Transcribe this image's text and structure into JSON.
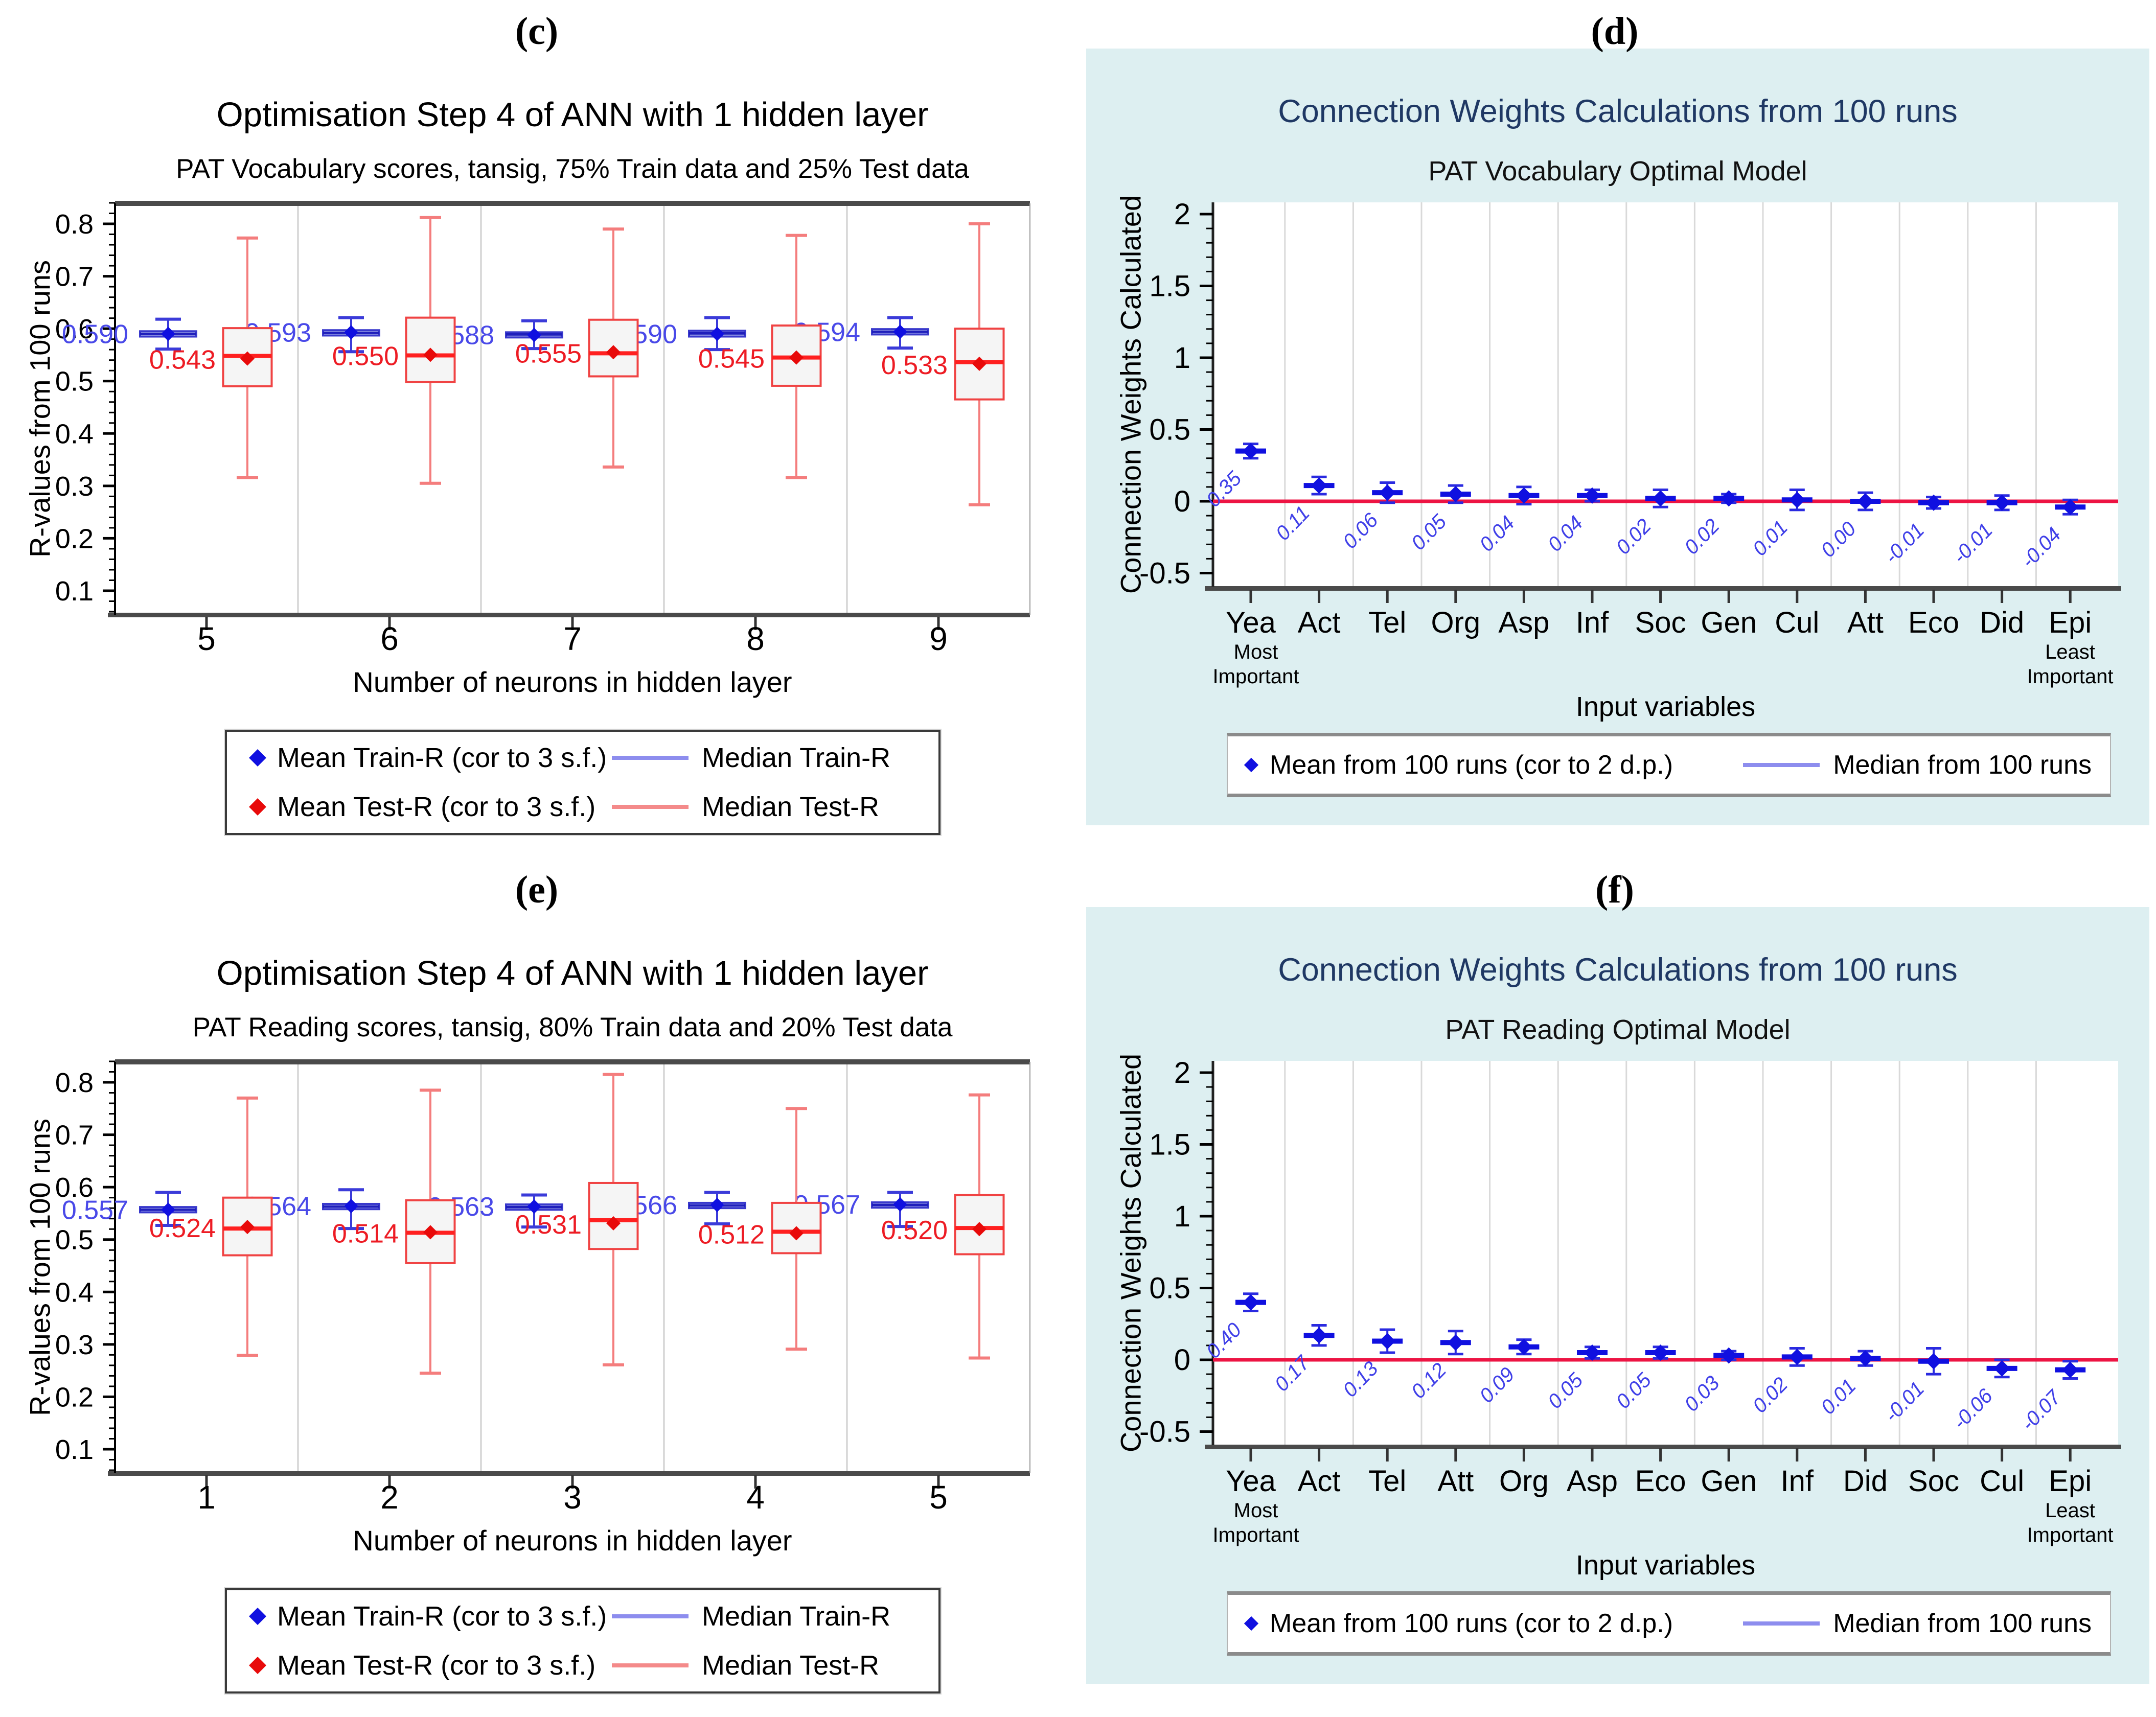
{
  "colors": {
    "page_bg": "#ffffff",
    "card_bg": "#DDEFF1",
    "navy_title": "#1F3864",
    "axis_dark": "#4a4a4a",
    "grid_gray": "#d9d9d9",
    "separator_gray": "#cfcfcf",
    "train_blue": "#1010E0",
    "train_box_fill": "#C9D2F6",
    "train_box_edge": "#3939CC",
    "train_median": "#1F1FBB",
    "train_whisker": "#3B3BD9",
    "train_label_text": "#4949E8",
    "test_red": "#E80A0A",
    "test_box_fill": "#F5F5F5",
    "test_box_edge": "#F04343",
    "test_median": "#FF2020",
    "test_whisker": "#F47D7D",
    "test_label_text": "#ED1C24",
    "zero_line_crimson": "#ED1443",
    "legend_median_blue": "#8D8DEE",
    "legend_median_salmon": "#F48A8A",
    "value_label_blue": "#4040E8"
  },
  "panels_shared": {
    "box_legend": [
      {
        "label": "Mean Train-R (cor to 3 s.f.)",
        "marker": "diamond",
        "color": "#1010E0"
      },
      {
        "label": "Median Train-R",
        "marker": "line",
        "color": "#8D8DEE"
      },
      {
        "label": "Mean Test-R (cor to 3 s.f.)",
        "marker": "diamond",
        "color": "#E80A0A"
      },
      {
        "label": "Median Test-R",
        "marker": "line",
        "color": "#F48A8A"
      }
    ],
    "cw_legend": [
      {
        "label": "Mean from 100 runs (cor to 2 d.p.)",
        "marker": "diamond",
        "color": "#1010E0"
      },
      {
        "label": "Median from 100 runs",
        "marker": "line",
        "color": "#8D8DEE"
      }
    ]
  },
  "chart_data": [
    {
      "id": "c",
      "type": "boxplot",
      "tag": "(c)",
      "title": "Optimisation Step 4 of ANN with 1 hidden layer",
      "subtitle": "PAT Vocabulary scores, tansig, 75% Train data and 25% Test data",
      "xlabel": "Number of neurons in hidden layer",
      "ylabel": "R-values from 100 runs",
      "ylim": [
        0.05,
        0.84
      ],
      "yticks": [
        0.1,
        0.2,
        0.3,
        0.4,
        0.5,
        0.6,
        0.7,
        0.8
      ],
      "categories": [
        "5",
        "6",
        "7",
        "8",
        "9"
      ],
      "grid": "section-separators",
      "legend_position": "bottom",
      "train": [
        {
          "mean": 0.59,
          "label": "0.590",
          "median": 0.59,
          "q1": 0.585,
          "q3": 0.595,
          "lo": 0.561,
          "hi": 0.618
        },
        {
          "mean": 0.593,
          "label": "0.593",
          "median": 0.592,
          "q1": 0.587,
          "q3": 0.597,
          "lo": 0.556,
          "hi": 0.621
        },
        {
          "mean": 0.588,
          "label": "0.588",
          "median": 0.589,
          "q1": 0.584,
          "q3": 0.593,
          "lo": 0.562,
          "hi": 0.615
        },
        {
          "mean": 0.59,
          "label": "0.590",
          "median": 0.591,
          "q1": 0.585,
          "q3": 0.596,
          "lo": 0.56,
          "hi": 0.621
        },
        {
          "mean": 0.594,
          "label": "0.594",
          "median": 0.594,
          "q1": 0.589,
          "q3": 0.599,
          "lo": 0.563,
          "hi": 0.621
        }
      ],
      "test": [
        {
          "mean": 0.543,
          "label": "0.543",
          "median": 0.548,
          "q1": 0.49,
          "q3": 0.601,
          "lo": 0.316,
          "hi": 0.773
        },
        {
          "mean": 0.55,
          "label": "0.550",
          "median": 0.549,
          "q1": 0.498,
          "q3": 0.621,
          "lo": 0.305,
          "hi": 0.812
        },
        {
          "mean": 0.555,
          "label": "0.555",
          "median": 0.553,
          "q1": 0.509,
          "q3": 0.617,
          "lo": 0.336,
          "hi": 0.79
        },
        {
          "mean": 0.545,
          "label": "0.545",
          "median": 0.545,
          "q1": 0.491,
          "q3": 0.606,
          "lo": 0.316,
          "hi": 0.778
        },
        {
          "mean": 0.533,
          "label": "0.533",
          "median": 0.536,
          "q1": 0.465,
          "q3": 0.6,
          "lo": 0.264,
          "hi": 0.8
        }
      ]
    },
    {
      "id": "d",
      "type": "scatter",
      "tag": "(d)",
      "title": "Connection Weights Calculations from 100 runs",
      "subtitle": "PAT Vocabulary Optimal Model",
      "xlabel": "Input variables",
      "ylabel": "Connection Weights Calculated",
      "ylim": [
        -0.6,
        2.1
      ],
      "yticks": [
        -0.5,
        0,
        0.5,
        1,
        1.5,
        2
      ],
      "ytick_labels": [
        "-0.5",
        "0",
        "0.5",
        "1",
        "1.5",
        "2"
      ],
      "categories": [
        "Yea",
        "Act",
        "Tel",
        "Org",
        "Asp",
        "Inf",
        "Soc",
        "Gen",
        "Cul",
        "Att",
        "Eco",
        "Did",
        "Epi"
      ],
      "values": [
        0.35,
        0.11,
        0.06,
        0.05,
        0.04,
        0.04,
        0.02,
        0.02,
        0.01,
        0.0,
        -0.01,
        -0.01,
        -0.04
      ],
      "value_labels": [
        "0.35",
        "0.11",
        "0.06",
        "0.05",
        "0.04",
        "0.04",
        "0.02",
        "0.02",
        "0.01",
        "0.00",
        "-0.01",
        "-0.01",
        "-0.04"
      ],
      "errors": [
        0.05,
        0.06,
        0.07,
        0.06,
        0.06,
        0.04,
        0.06,
        0.03,
        0.07,
        0.06,
        0.04,
        0.05,
        0.05
      ],
      "zero_line": true,
      "grid": "vertical-cell-boundaries",
      "annotations": {
        "first": "Most\nImportant",
        "last": "Least\nImportant"
      },
      "legend_position": "bottom"
    },
    {
      "id": "e",
      "type": "boxplot",
      "tag": "(e)",
      "title": "Optimisation Step 4 of ANN with 1 hidden layer",
      "subtitle": "PAT Reading scores, tansig, 80% Train data and 20% Test data",
      "xlabel": "Number of neurons in hidden layer",
      "ylabel": "R-values from 100 runs",
      "ylim": [
        0.05,
        0.84
      ],
      "yticks": [
        0.1,
        0.2,
        0.3,
        0.4,
        0.5,
        0.6,
        0.7,
        0.8
      ],
      "categories": [
        "1",
        "2",
        "3",
        "4",
        "5"
      ],
      "grid": "section-separators",
      "legend_position": "bottom",
      "train": [
        {
          "mean": 0.557,
          "label": "0.557",
          "median": 0.557,
          "q1": 0.552,
          "q3": 0.562,
          "lo": 0.527,
          "hi": 0.59
        },
        {
          "mean": 0.564,
          "label": "0.564",
          "median": 0.563,
          "q1": 0.558,
          "q3": 0.568,
          "lo": 0.521,
          "hi": 0.595
        },
        {
          "mean": 0.563,
          "label": "0.563",
          "median": 0.562,
          "q1": 0.557,
          "q3": 0.567,
          "lo": 0.524,
          "hi": 0.585
        },
        {
          "mean": 0.566,
          "label": "0.566",
          "median": 0.565,
          "q1": 0.56,
          "q3": 0.57,
          "lo": 0.53,
          "hi": 0.59
        },
        {
          "mean": 0.567,
          "label": "0.567",
          "median": 0.566,
          "q1": 0.561,
          "q3": 0.571,
          "lo": 0.525,
          "hi": 0.59
        }
      ],
      "test": [
        {
          "mean": 0.524,
          "label": "0.524",
          "median": 0.521,
          "q1": 0.47,
          "q3": 0.58,
          "lo": 0.279,
          "hi": 0.77
        },
        {
          "mean": 0.514,
          "label": "0.514",
          "median": 0.513,
          "q1": 0.455,
          "q3": 0.575,
          "lo": 0.245,
          "hi": 0.785
        },
        {
          "mean": 0.531,
          "label": "0.531",
          "median": 0.537,
          "q1": 0.482,
          "q3": 0.608,
          "lo": 0.261,
          "hi": 0.815
        },
        {
          "mean": 0.512,
          "label": "0.512",
          "median": 0.515,
          "q1": 0.474,
          "q3": 0.57,
          "lo": 0.291,
          "hi": 0.75
        },
        {
          "mean": 0.52,
          "label": "0.520",
          "median": 0.522,
          "q1": 0.472,
          "q3": 0.585,
          "lo": 0.274,
          "hi": 0.776
        }
      ]
    },
    {
      "id": "f",
      "type": "scatter",
      "tag": "(f)",
      "title": "Connection Weights Calculations from 100 runs",
      "subtitle": "PAT Reading Optimal Model",
      "xlabel": "Input variables",
      "ylabel": "Connection Weights Calculated",
      "ylim": [
        -0.6,
        2.1
      ],
      "yticks": [
        -0.5,
        0,
        0.5,
        1,
        1.5,
        2
      ],
      "ytick_labels": [
        "-0.5",
        "0",
        "0.5",
        "1",
        "1.5",
        "2"
      ],
      "categories": [
        "Yea",
        "Act",
        "Tel",
        "Att",
        "Org",
        "Asp",
        "Eco",
        "Gen",
        "Inf",
        "Did",
        "Soc",
        "Cul",
        "Epi"
      ],
      "values": [
        0.4,
        0.17,
        0.13,
        0.12,
        0.09,
        0.05,
        0.05,
        0.03,
        0.02,
        0.01,
        -0.01,
        -0.06,
        -0.07
      ],
      "value_labels": [
        "0.40",
        "0.17",
        "0.13",
        "0.12",
        "0.09",
        "0.05",
        "0.05",
        "0.03",
        "0.02",
        "0.01",
        "-0.01",
        "-0.06",
        "-0.07"
      ],
      "errors": [
        0.06,
        0.07,
        0.08,
        0.08,
        0.05,
        0.04,
        0.04,
        0.03,
        0.06,
        0.05,
        0.09,
        0.06,
        0.06
      ],
      "zero_line": true,
      "grid": "vertical-cell-boundaries",
      "annotations": {
        "first": "Most\nImportant",
        "last": "Least\nImportant"
      },
      "legend_position": "bottom"
    }
  ]
}
